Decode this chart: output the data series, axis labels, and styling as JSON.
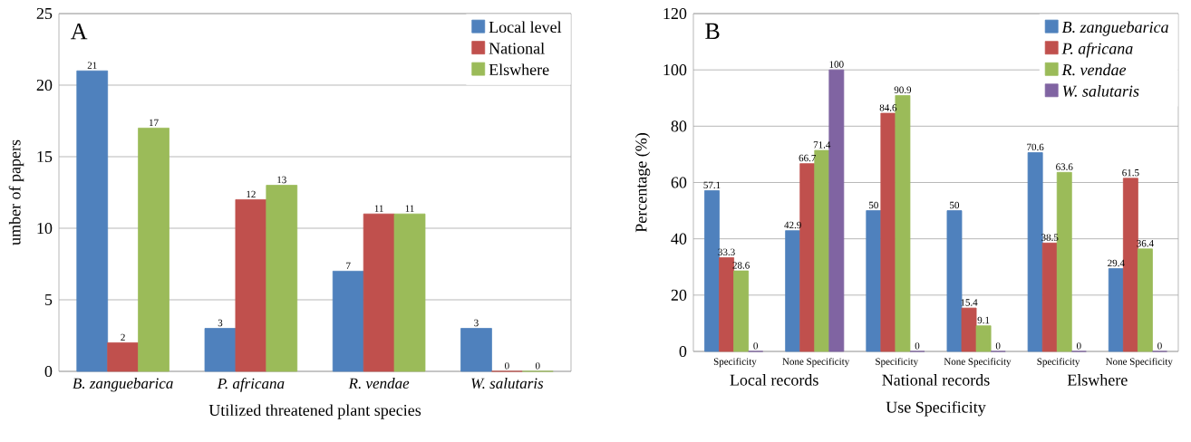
{
  "chart_data": [
    {
      "type": "bar",
      "title": "A",
      "xlabel": "Utilized threatened plant species",
      "ylabel": "umber of papers",
      "categories": [
        "B. zanguebarica",
        "P. africana",
        "R. vendae",
        "W. salutaris"
      ],
      "series": [
        {
          "name": "Local level",
          "color": "#4f81bd",
          "values": [
            21,
            3,
            7,
            3
          ]
        },
        {
          "name": "National",
          "color": "#c0504d",
          "values": [
            2,
            12,
            11,
            0
          ]
        },
        {
          "name": "Elswhere",
          "color": "#9bbb59",
          "values": [
            17,
            13,
            11,
            0
          ]
        }
      ],
      "ylim": [
        0,
        25
      ],
      "yticks": [
        0,
        5,
        10,
        15,
        20,
        25
      ],
      "grid": "y",
      "legend": "top right",
      "data_labels": true
    },
    {
      "type": "bar",
      "title": "B",
      "xlabel": "Use Specificity",
      "ylabel": "Percentage (%)",
      "categories": [
        "Specificity",
        "None Specificity",
        "Specificity",
        "None Specificity",
        "Specificity",
        "None Specificity"
      ],
      "annotations": [
        "Local records",
        "National records",
        "Elswhere"
      ],
      "series": [
        {
          "name": "B. zanguebarica",
          "color": "#4f81bd",
          "values": [
            57.1,
            42.9,
            50,
            50,
            70.6,
            29.4
          ]
        },
        {
          "name": "P. africana",
          "color": "#c0504d",
          "values": [
            33.3,
            66.7,
            84.6,
            15.4,
            38.5,
            61.5
          ]
        },
        {
          "name": "R. vendae",
          "color": "#9bbb59",
          "values": [
            28.6,
            71.4,
            90.9,
            9.1,
            63.6,
            36.4
          ]
        },
        {
          "name": "W. salutaris",
          "color": "#8064a2",
          "values": [
            0,
            100,
            0,
            0,
            0,
            0
          ]
        }
      ],
      "ylim": [
        0,
        120
      ],
      "yticks": [
        0,
        20,
        40,
        60,
        80,
        100,
        120
      ],
      "grid": "y",
      "legend": "top right",
      "data_labels": true
    }
  ]
}
